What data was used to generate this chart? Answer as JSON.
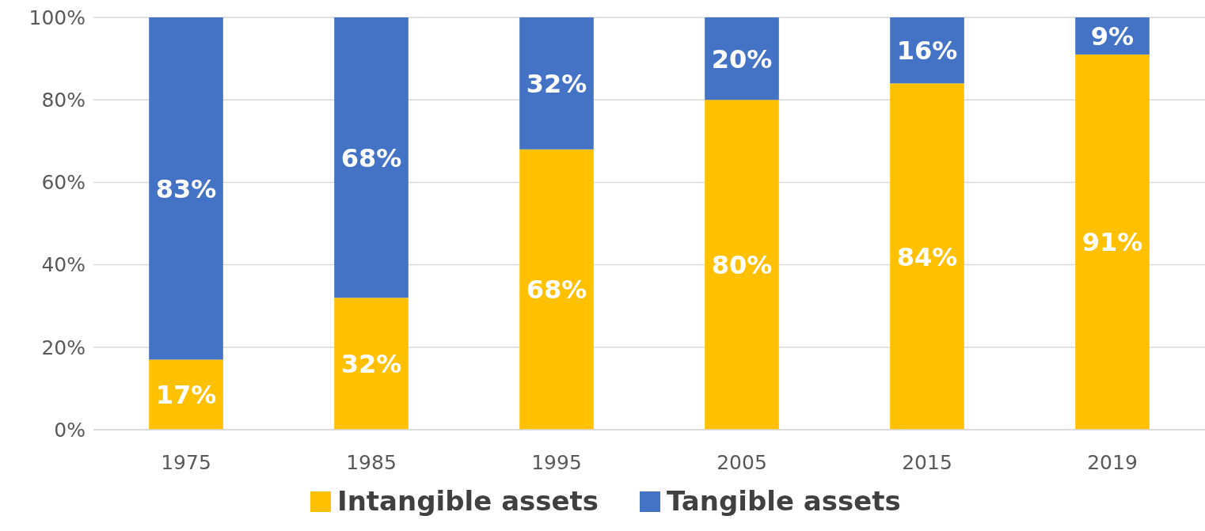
{
  "chart_data": {
    "type": "bar",
    "stacked": true,
    "categories": [
      "1975",
      "1985",
      "1995",
      "2005",
      "2015",
      "2019"
    ],
    "series": [
      {
        "name": "Intangible assets",
        "color": "#ffc000",
        "values": [
          17,
          32,
          68,
          80,
          84,
          91
        ],
        "value_labels": [
          "17%",
          "32%",
          "68%",
          "80%",
          "84%",
          "91%"
        ]
      },
      {
        "name": "Tangible assets",
        "color": "#4472c4",
        "values": [
          83,
          68,
          32,
          20,
          16,
          9
        ],
        "value_labels": [
          "83%",
          "68%",
          "32%",
          "20%",
          "16%",
          "9%"
        ]
      }
    ],
    "ylim": [
      0,
      100
    ],
    "yticks": [
      {
        "value": 0,
        "label": "0%"
      },
      {
        "value": 20,
        "label": "20%"
      },
      {
        "value": 40,
        "label": "40%"
      },
      {
        "value": 60,
        "label": "60%"
      },
      {
        "value": 80,
        "label": "80%"
      },
      {
        "value": 100,
        "label": "100%"
      }
    ],
    "grid": "y",
    "legend": "bottom"
  }
}
